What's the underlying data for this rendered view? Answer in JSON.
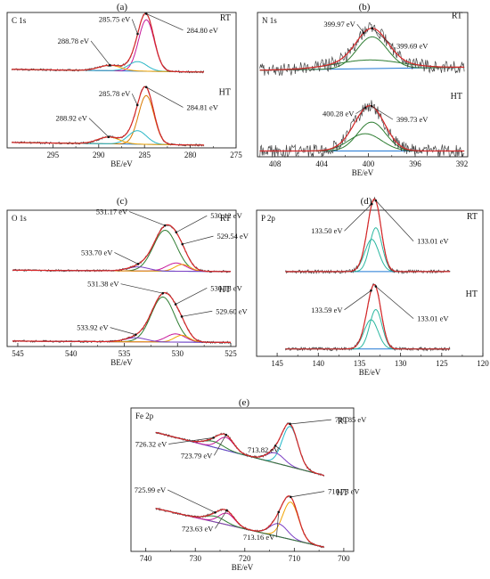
{
  "chart_data": [
    {
      "type": "line",
      "panel_label": "(a)",
      "corner_label": "C 1s",
      "xlabel": "BE/eV",
      "xlim": [
        300,
        275
      ],
      "xticks": [
        295,
        290,
        285,
        280,
        275
      ],
      "ylim": [
        0,
        1
      ],
      "series_colors": {
        "raw": "#444444",
        "fit": "#d62728",
        "c1": "#c7189a",
        "c2": "#2bb7c7",
        "c3": "#f2a300",
        "c4": "#2e7d32",
        "bg": "#1f77d4",
        "c1_ht": "#d97b00"
      },
      "groups": [
        {
          "name": "RT",
          "offset": 0.58,
          "background": [
            [
              299.5,
              0.0
            ],
            [
              278.5,
              -0.02
            ]
          ],
          "peaks": [
            {
              "center": 284.8,
              "amp": 0.38,
              "width": 0.85
            },
            {
              "center": 285.75,
              "amp": 0.07,
              "width": 1.0
            },
            {
              "center": 288.78,
              "amp": 0.04,
              "width": 1.2
            }
          ],
          "annotations": [
            {
              "text": "284.80 eV",
              "x": 280.4,
              "y": 0.27,
              "tip": 284.8
            },
            {
              "text": "285.75 eV",
              "x": 288.3,
              "y": 0.35,
              "tip": 285.75
            },
            {
              "text": "288.78 eV",
              "x": 292.8,
              "y": 0.19,
              "tip": 288.78
            }
          ]
        },
        {
          "name": "HT",
          "offset": 0.03,
          "background": [
            [
              299.5,
              0.01
            ],
            [
              278.5,
              -0.01
            ]
          ],
          "peaks": [
            {
              "center": 284.81,
              "amp": 0.36,
              "width": 0.85
            },
            {
              "center": 285.78,
              "amp": 0.1,
              "width": 1.0
            },
            {
              "center": 288.92,
              "amp": 0.05,
              "width": 1.2
            }
          ],
          "annotations": [
            {
              "text": "284.81 eV",
              "x": 280.4,
              "y": 0.25,
              "tip": 284.81
            },
            {
              "text": "285.78 eV",
              "x": 288.3,
              "y": 0.35,
              "tip": 285.78
            },
            {
              "text": "288.92 eV",
              "x": 293.0,
              "y": 0.17,
              "tip": 288.92
            }
          ]
        }
      ]
    },
    {
      "type": "line",
      "panel_label": "(b)",
      "corner_label": "N 1s",
      "xlabel": "BE/eV",
      "xlim": [
        409.5,
        391.5
      ],
      "xticks": [
        408,
        404,
        400,
        396,
        392
      ],
      "ylim": [
        0,
        1
      ],
      "series_colors": {
        "raw": "#444444",
        "fit": "#d62728",
        "c1": "#2e7d32",
        "c2": "#2e7d32",
        "c3": "#2e7d32",
        "c4": "#2e7d32",
        "bg": "#1f77d4",
        "c1_ht": "#2e7d32"
      },
      "groups": [
        {
          "name": "RT",
          "offset": 0.6,
          "background": [
            [
              409.3,
              0.0
            ],
            [
              391.8,
              0.02
            ]
          ],
          "peaks": [
            {
              "center": 399.69,
              "amp": 0.22,
              "width": 1.3
            },
            {
              "center": 399.97,
              "amp": 0.06,
              "width": 2.8
            }
          ],
          "annotations": [
            {
              "text": "399.97 eV",
              "x": 402.5,
              "y": 0.3,
              "tip": 400.4
            },
            {
              "text": "399.69 eV",
              "x": 397.6,
              "y": 0.15,
              "tip": 399.69
            }
          ]
        },
        {
          "name": "HT",
          "offset": 0.04,
          "background": [
            [
              409.3,
              0.0
            ],
            [
              391.8,
              0.0
            ]
          ],
          "peaks": [
            {
              "center": 399.73,
              "amp": 0.2,
              "width": 1.2
            },
            {
              "center": 400.28,
              "amp": 0.12,
              "width": 1.4
            }
          ],
          "annotations": [
            {
              "text": "400.28 eV",
              "x": 402.6,
              "y": 0.24,
              "tip": 400.28
            },
            {
              "text": "399.73 eV",
              "x": 397.6,
              "y": 0.2,
              "tip": 399.73
            }
          ]
        }
      ]
    },
    {
      "type": "line",
      "panel_label": "(c)",
      "corner_label": "O 1s",
      "xlabel": "BE/eV",
      "xlim": [
        546,
        524.5
      ],
      "xticks": [
        545,
        540,
        535,
        530,
        525
      ],
      "ylim": [
        0,
        1
      ],
      "series_colors": {
        "raw": "#444444",
        "fit": "#d62728",
        "c1": "#2e7d32",
        "c2": "#c7189a",
        "c3": "#f2a300",
        "c4": "#7b3fc4",
        "bg": "#1f77d4",
        "c1_ht": "#2e7d32"
      },
      "groups": [
        {
          "name": "RT",
          "offset": 0.56,
          "background": [
            [
              545.5,
              0.0
            ],
            [
              525.0,
              -0.01
            ]
          ],
          "peaks": [
            {
              "center": 531.17,
              "amp": 0.3,
              "width": 1.1
            },
            {
              "center": 530.12,
              "amp": 0.06,
              "width": 0.9
            },
            {
              "center": 529.54,
              "amp": 0.05,
              "width": 0.7
            },
            {
              "center": 533.7,
              "amp": 0.03,
              "width": 1.0
            }
          ],
          "annotations": [
            {
              "text": "531.17 eV",
              "x": 536.2,
              "y": 0.41,
              "tip": 531.17
            },
            {
              "text": "530.12 eV",
              "x": 526.9,
              "y": 0.38,
              "tip": 530.12
            },
            {
              "text": "529.54 eV",
              "x": 526.3,
              "y": 0.23,
              "tip": 529.54
            },
            {
              "text": "533.70 eV",
              "x": 537.6,
              "y": 0.11,
              "tip": 533.7
            }
          ]
        },
        {
          "name": "HT",
          "offset": 0.04,
          "background": [
            [
              545.5,
              0.0
            ],
            [
              525.0,
              -0.01
            ]
          ],
          "peaks": [
            {
              "center": 531.38,
              "amp": 0.33,
              "width": 1.1
            },
            {
              "center": 530.18,
              "amp": 0.06,
              "width": 0.9
            },
            {
              "center": 529.6,
              "amp": 0.05,
              "width": 0.7
            },
            {
              "center": 533.92,
              "amp": 0.03,
              "width": 1.0
            }
          ],
          "annotations": [
            {
              "text": "531.38 eV",
              "x": 537.0,
              "y": 0.4,
              "tip": 531.38
            },
            {
              "text": "530.18 eV",
              "x": 526.9,
              "y": 0.37,
              "tip": 530.18
            },
            {
              "text": "529.60 eV",
              "x": 526.4,
              "y": 0.2,
              "tip": 529.6
            },
            {
              "text": "533.92 eV",
              "x": 538.0,
              "y": 0.08,
              "tip": 533.92
            }
          ]
        }
      ]
    },
    {
      "type": "line",
      "panel_label": "(d)",
      "corner_label": "P 2p",
      "xlabel": "BE/eV",
      "xlim": [
        147.5,
        120
      ],
      "xticks": [
        145,
        140,
        135,
        130,
        125,
        120
      ],
      "ylim": [
        0,
        1
      ],
      "series_colors": {
        "raw": "#444444",
        "fit": "#d62728",
        "c1": "#2bb7a0",
        "c2": "#2bb7a0",
        "c3": "#2bb7a0",
        "c4": "#2bb7a0",
        "bg": "#1f77d4",
        "c1_ht": "#2bb7a0"
      },
      "groups": [
        {
          "name": "RT",
          "offset": 0.58,
          "background": [
            [
              144.0,
              0.0
            ],
            [
              124.0,
              0.0
            ]
          ],
          "peaks": [
            {
              "center": 133.01,
              "amp": 0.3,
              "width": 0.75
            },
            {
              "center": 133.5,
              "amp": 0.22,
              "width": 0.85
            }
          ],
          "annotations": [
            {
              "text": "133.50 eV",
              "x": 139.0,
              "y": 0.26,
              "tip": 133.5
            },
            {
              "text": "133.01 eV",
              "x": 128.0,
              "y": 0.19,
              "tip": 133.01
            }
          ]
        },
        {
          "name": "HT",
          "offset": 0.05,
          "background": [
            [
              144.0,
              0.0
            ],
            [
              124.0,
              0.0
            ]
          ],
          "peaks": [
            {
              "center": 133.01,
              "amp": 0.27,
              "width": 0.75
            },
            {
              "center": 133.59,
              "amp": 0.2,
              "width": 0.85
            }
          ],
          "annotations": [
            {
              "text": "133.59 eV",
              "x": 139.0,
              "y": 0.25,
              "tip": 133.59
            },
            {
              "text": "133.01 eV",
              "x": 128.0,
              "y": 0.19,
              "tip": 133.01
            }
          ]
        }
      ]
    },
    {
      "type": "line",
      "panel_label": "(e)",
      "corner_label": "Fe 2p",
      "xlabel": "BE/eV",
      "xlim": [
        743,
        698
      ],
      "xticks": [
        740,
        730,
        720,
        710,
        700
      ],
      "ylim": [
        0,
        1
      ],
      "series_colors": {
        "raw": "#444444",
        "fit": "#d62728",
        "c1": "#22b8c9",
        "c2": "#7b3fc4",
        "c3": "#c7189a",
        "c4": "#2e7d32",
        "bg": "#1f77d4",
        "c1_ht": "#f2a300"
      },
      "groups": [
        {
          "name": "RT",
          "offset": 0.53,
          "background": [
            [
              738.0,
              0.3
            ],
            [
              704.0,
              0.0
            ]
          ],
          "peaks": [
            {
              "center": 710.85,
              "amp": 0.28,
              "width": 1.6
            },
            {
              "center": 713.82,
              "amp": 0.07,
              "width": 1.8
            },
            {
              "center": 723.79,
              "amp": 0.09,
              "width": 1.6
            },
            {
              "center": 726.32,
              "amp": 0.04,
              "width": 2.0
            }
          ],
          "annotations": [
            {
              "text": "710.85 eV",
              "x": 701.8,
              "y": 0.37,
              "tip": 710.85
            },
            {
              "text": "726.32 eV",
              "x": 739.0,
              "y": 0.2,
              "tip": 726.32
            },
            {
              "text": "723.79 eV",
              "x": 729.8,
              "y": 0.12,
              "tip": 723.79
            },
            {
              "text": "713.82 eV",
              "x": 716.3,
              "y": 0.16,
              "tip": 713.82
            }
          ]
        },
        {
          "name": "HT",
          "offset": 0.03,
          "background": [
            [
              738.0,
              0.27
            ],
            [
              704.0,
              0.0
            ]
          ],
          "peaks": [
            {
              "center": 710.73,
              "amp": 0.26,
              "width": 1.6
            },
            {
              "center": 713.16,
              "amp": 0.09,
              "width": 1.8
            },
            {
              "center": 723.63,
              "amp": 0.08,
              "width": 1.6
            },
            {
              "center": 725.99,
              "amp": 0.04,
              "width": 2.0
            }
          ],
          "annotations": [
            {
              "text": "725.99 eV",
              "x": 739.2,
              "y": 0.38,
              "tip": 725.99
            },
            {
              "text": "710.73 eV",
              "x": 703.2,
              "y": 0.37,
              "tip": 710.73
            },
            {
              "text": "723.63 eV",
              "x": 729.6,
              "y": 0.11,
              "tip": 723.63
            },
            {
              "text": "713.16 eV",
              "x": 717.2,
              "y": 0.05,
              "tip": 713.16
            }
          ]
        }
      ]
    }
  ]
}
